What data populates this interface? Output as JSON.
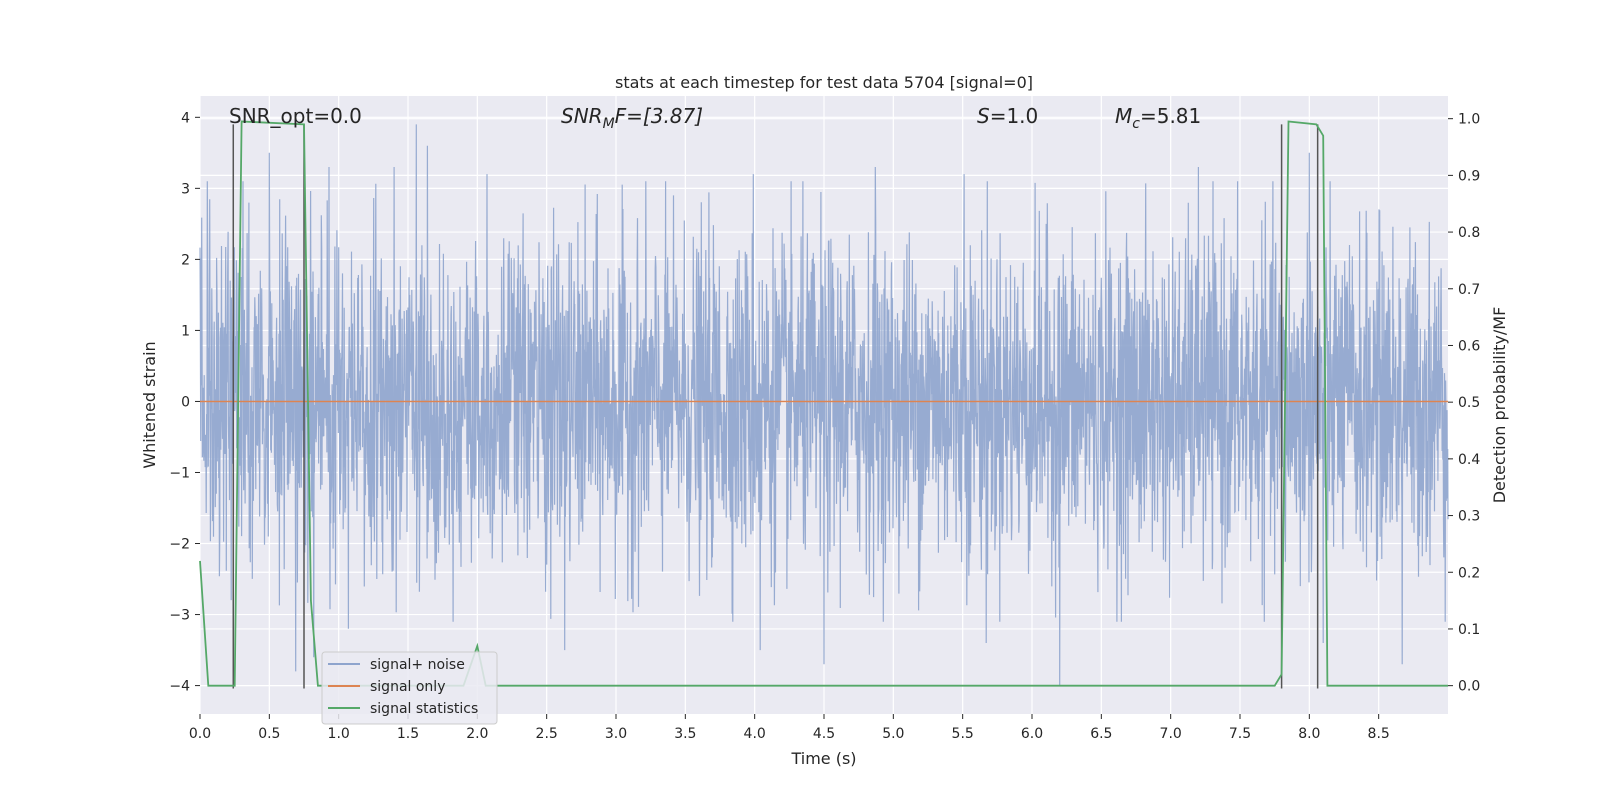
{
  "chart_data": {
    "type": "line",
    "title": "stats at each timestep for test data 5704 [signal=0]",
    "xlabel": "Time (s)",
    "ylabel": "Whitened strain",
    "ylabel_right": "Detection probability/MF",
    "xlim": [
      0.0,
      9.0
    ],
    "ylim": [
      -4.4,
      4.3
    ],
    "ylim_right": [
      -0.05,
      1.04
    ],
    "x_ticks": [
      "0.0",
      "0.5",
      "1.0",
      "1.5",
      "2.0",
      "2.5",
      "3.0",
      "3.5",
      "4.0",
      "4.5",
      "5.0",
      "5.5",
      "6.0",
      "6.5",
      "7.0",
      "7.5",
      "8.0",
      "8.5"
    ],
    "y_ticks_left": [
      "4",
      "3",
      "2",
      "1",
      "0",
      "−1",
      "−2",
      "−3",
      "−4"
    ],
    "y_ticks_right": [
      "1.0",
      "0.9",
      "0.8",
      "0.7",
      "0.6",
      "0.5",
      "0.4",
      "0.3",
      "0.2",
      "0.1",
      "0.0"
    ],
    "grid": true,
    "legend_position": "lower-left",
    "annotations": {
      "snr_opt": "SNR_opt=0.0",
      "snr_mf_name": "SNR",
      "snr_mf_sub": "M",
      "snr_mf_rest": "F=[3.87]",
      "s_name": "S",
      "s_rest": "=1.0",
      "mc_name": "M",
      "mc_sub": "c",
      "mc_rest": "=5.81"
    },
    "series": [
      {
        "name": "signal+ noise",
        "color": "#8ea4cd",
        "axis": "left",
        "style": "noise",
        "x_range": [
          0.0,
          9.0
        ],
        "typical_amplitude": 1.5,
        "peaks": [
          [
            0.5,
            3.5
          ],
          [
            0.93,
            3.3
          ],
          [
            1.4,
            3.3
          ],
          [
            1.56,
            3.9
          ],
          [
            1.64,
            3.6
          ],
          [
            2.07,
            3.2
          ],
          [
            3.99,
            3.2
          ],
          [
            4.87,
            3.3
          ],
          [
            5.51,
            3.2
          ],
          [
            7.2,
            3.3
          ],
          [
            8.0,
            3.5
          ]
        ],
        "troughs": [
          [
            0.69,
            -3.8
          ],
          [
            0.82,
            -3.6
          ],
          [
            1.07,
            -3.2
          ],
          [
            2.63,
            -3.5
          ],
          [
            4.04,
            -3.5
          ],
          [
            4.5,
            -3.7
          ],
          [
            5.67,
            -3.4
          ],
          [
            6.2,
            -4.0
          ],
          [
            8.1,
            -3.4
          ],
          [
            8.67,
            -3.7
          ]
        ]
      },
      {
        "name": "signal only",
        "color": "#dd8452",
        "axis": "left",
        "x": [
          0.0,
          9.0
        ],
        "y": [
          0.0,
          0.0
        ]
      },
      {
        "name": "signal statistics",
        "color": "#55a868",
        "axis": "right",
        "x": [
          0.0,
          0.06,
          0.25,
          0.3,
          0.75,
          0.8,
          0.85,
          1.9,
          2.0,
          2.06,
          7.75,
          7.8,
          7.85,
          8.05,
          8.1,
          8.13,
          9.0
        ],
        "y": [
          0.22,
          0.0,
          0.0,
          0.995,
          0.99,
          0.15,
          0.0,
          0.0,
          0.07,
          0.0,
          0.0,
          0.02,
          0.995,
          0.99,
          0.97,
          0.0,
          0.0
        ]
      }
    ],
    "markers": [
      {
        "name": "marker-start-0",
        "color": "#555555",
        "x": 0.24,
        "y_top": 0.99,
        "y_bottom": -0.005
      },
      {
        "name": "marker-end-0",
        "color": "#555555",
        "x": 0.75,
        "y_top": 0.99,
        "y_bottom": -0.005
      },
      {
        "name": "marker-start-1",
        "color": "#555555",
        "x": 7.8,
        "y_top": 0.99,
        "y_bottom": -0.005
      },
      {
        "name": "marker-end-1",
        "color": "#555555",
        "x": 8.06,
        "y_top": 0.99,
        "y_bottom": -0.005
      }
    ]
  }
}
